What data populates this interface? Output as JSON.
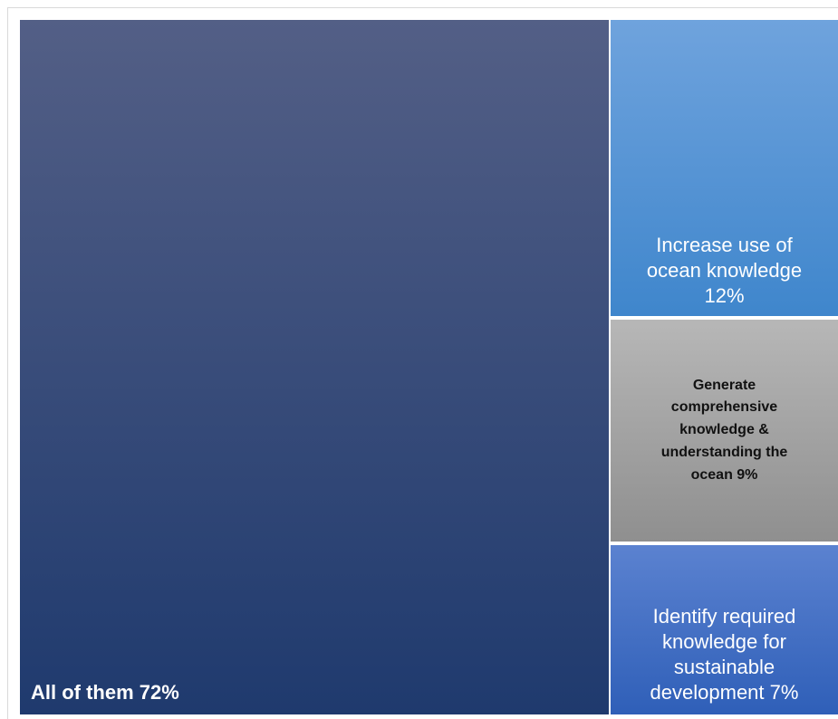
{
  "chart_data": {
    "type": "treemap",
    "items": [
      {
        "label_lines": [
          "All of them 72%"
        ],
        "name": "All of them",
        "value": 72,
        "color_top": "#535f86",
        "color_bottom": "#1f3a6e",
        "text_color": "#ffffff",
        "bold": true,
        "align": "left"
      },
      {
        "label_lines": [
          "Increase use of",
          "ocean knowledge",
          "12%"
        ],
        "name": "Increase use of ocean knowledge",
        "value": 12,
        "color_top": "#6fa3dd",
        "color_bottom": "#3f86cc",
        "text_color": "#ffffff",
        "bold": false,
        "align": "center"
      },
      {
        "label_lines": [
          "Generate",
          "comprehensive",
          "knowledge &",
          "understanding the",
          "ocean  9%"
        ],
        "name": "Generate comprehensive knowledge & understanding the ocean",
        "value": 9,
        "color_top": "#b7b7b7",
        "color_bottom": "#8f8f8f",
        "text_color": "#111111",
        "bold": true,
        "align": "center"
      },
      {
        "label_lines": [
          "Identify required",
          "knowledge for",
          "sustainable",
          "development  7%"
        ],
        "name": "Identify required knowledge for sustainable development",
        "value": 7,
        "color_top": "#5b82d0",
        "color_bottom": "#2f5fb8",
        "text_color": "#ffffff",
        "bold": false,
        "align": "center"
      }
    ]
  }
}
